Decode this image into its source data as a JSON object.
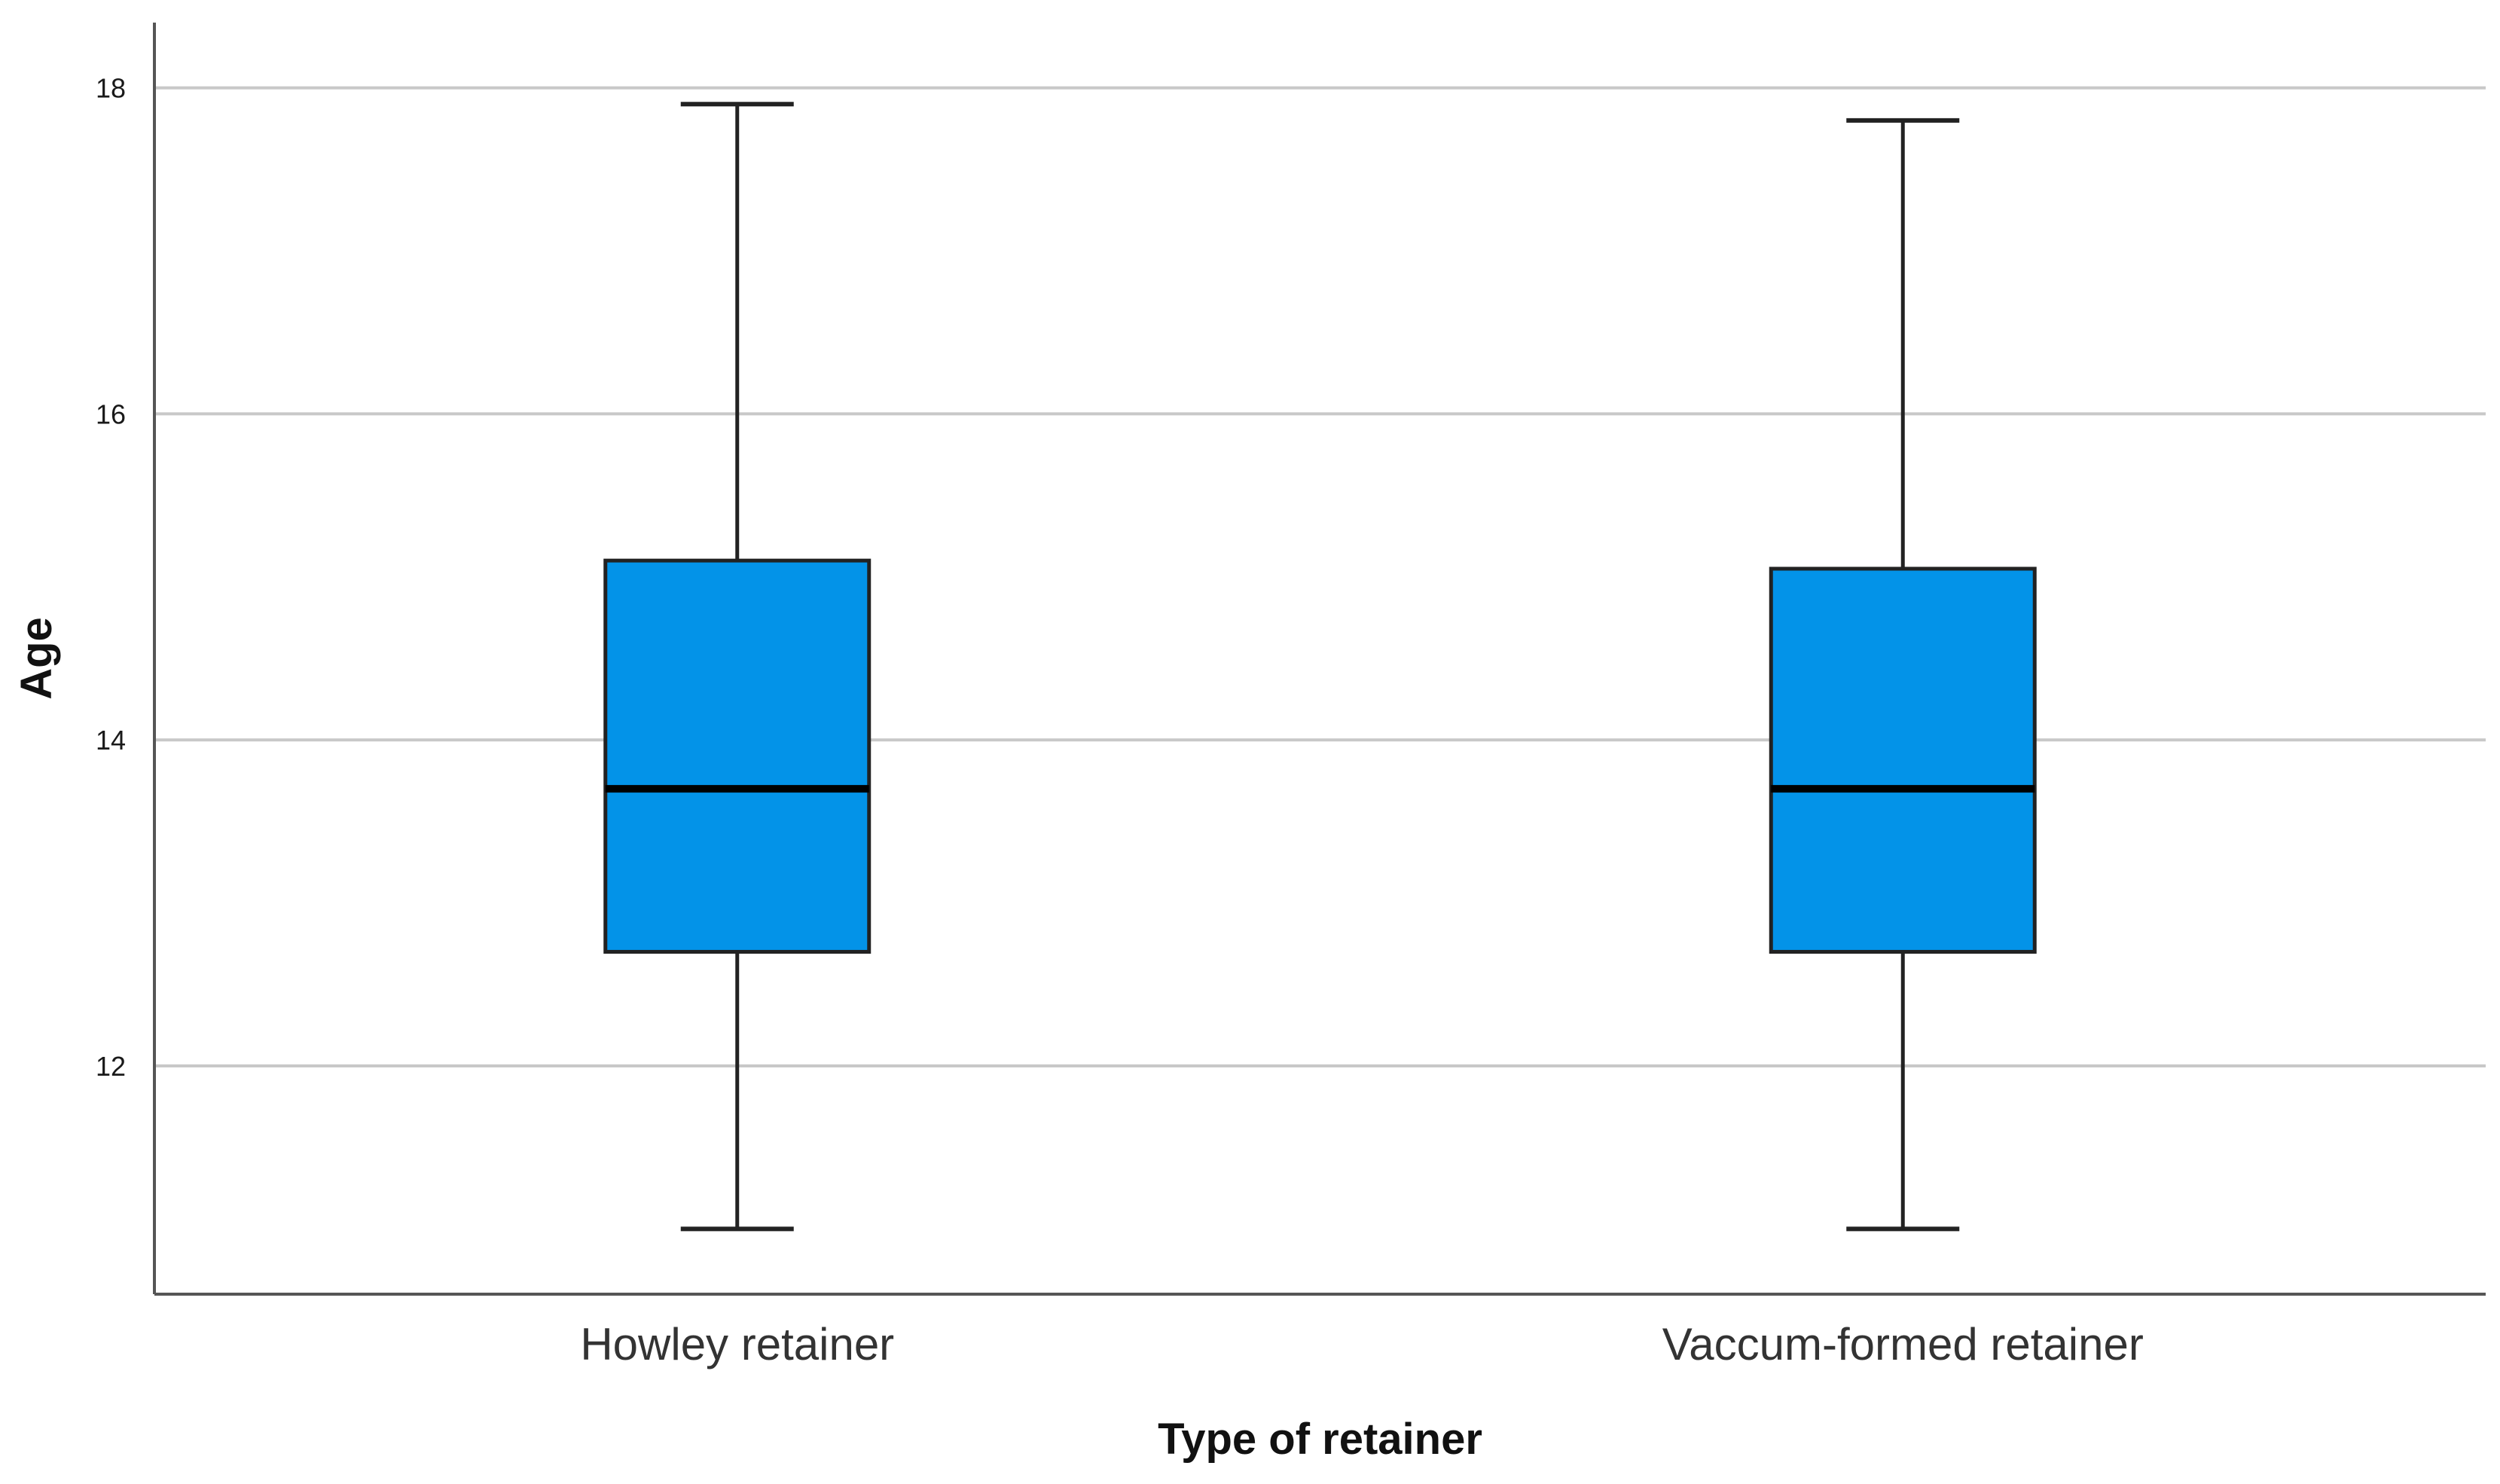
{
  "chart_data": {
    "type": "boxplot",
    "xlabel": "Type of retainer",
    "ylabel": "Age",
    "ylim": [
      10.6,
      18.4
    ],
    "yticks": [
      12,
      14,
      16,
      18
    ],
    "grid": true,
    "categories": [
      "Howley retainer",
      "Vaccum-formed retainer"
    ],
    "boxes": [
      {
        "category": "Howley retainer",
        "min": 11.0,
        "q1": 12.7,
        "median": 13.7,
        "q3": 15.1,
        "max": 17.9
      },
      {
        "category": "Vaccum-formed retainer",
        "min": 11.0,
        "q1": 12.7,
        "median": 13.7,
        "q3": 15.05,
        "max": 17.8
      }
    ]
  },
  "colors": {
    "box_fill": "#0393e8",
    "box_stroke": "#222222",
    "median": "#000000",
    "grid": "#c8c8c8",
    "axis": "#555555"
  }
}
